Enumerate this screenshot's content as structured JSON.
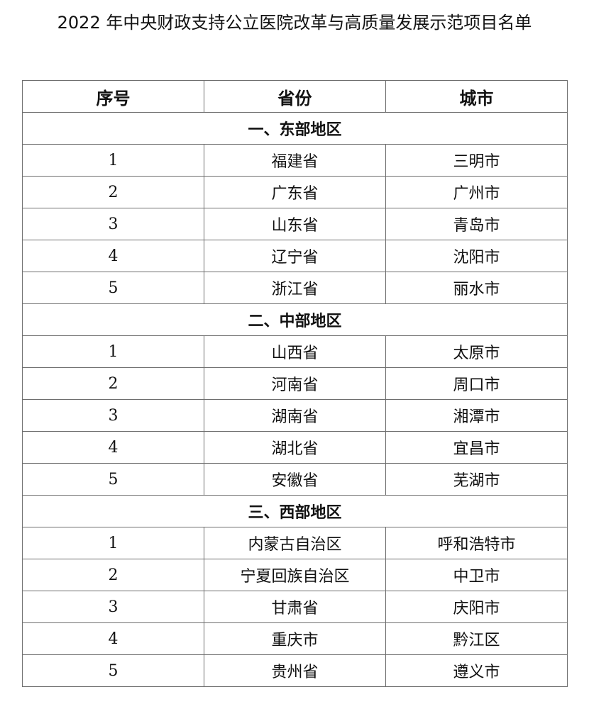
{
  "title": "2022 年中央财政支持公立医院改革与高质量发展示范项目名单",
  "headers": [
    "序号",
    "省份",
    "城市"
  ],
  "sections": [
    {
      "label": "一、东部地区",
      "rows": [
        [
          "1",
          "福建省",
          "三明市"
        ],
        [
          "2",
          "广东省",
          "广州市"
        ],
        [
          "3",
          "山东省",
          "青岛市"
        ],
        [
          "4",
          "辽宁省",
          "沈阳市"
        ],
        [
          "5",
          "浙江省",
          "丽水市"
        ]
      ]
    },
    {
      "label": "二、中部地区",
      "rows": [
        [
          "1",
          "山西省",
          "太原市"
        ],
        [
          "2",
          "河南省",
          "周口市"
        ],
        [
          "3",
          "湖南省",
          "湘潭市"
        ],
        [
          "4",
          "湖北省",
          "宜昌市"
        ],
        [
          "5",
          "安徽省",
          "芜湖市"
        ]
      ]
    },
    {
      "label": "三、西部地区",
      "rows": [
        [
          "1",
          "内蒙古自治区",
          "呼和浩特市"
        ],
        [
          "2",
          "宁夏回族自治区",
          "中卫市"
        ],
        [
          "3",
          "甘肃省",
          "庆阳市"
        ],
        [
          "4",
          "重庆市",
          "黔江区"
        ],
        [
          "5",
          "贵州省",
          "遵义市"
        ]
      ]
    }
  ]
}
